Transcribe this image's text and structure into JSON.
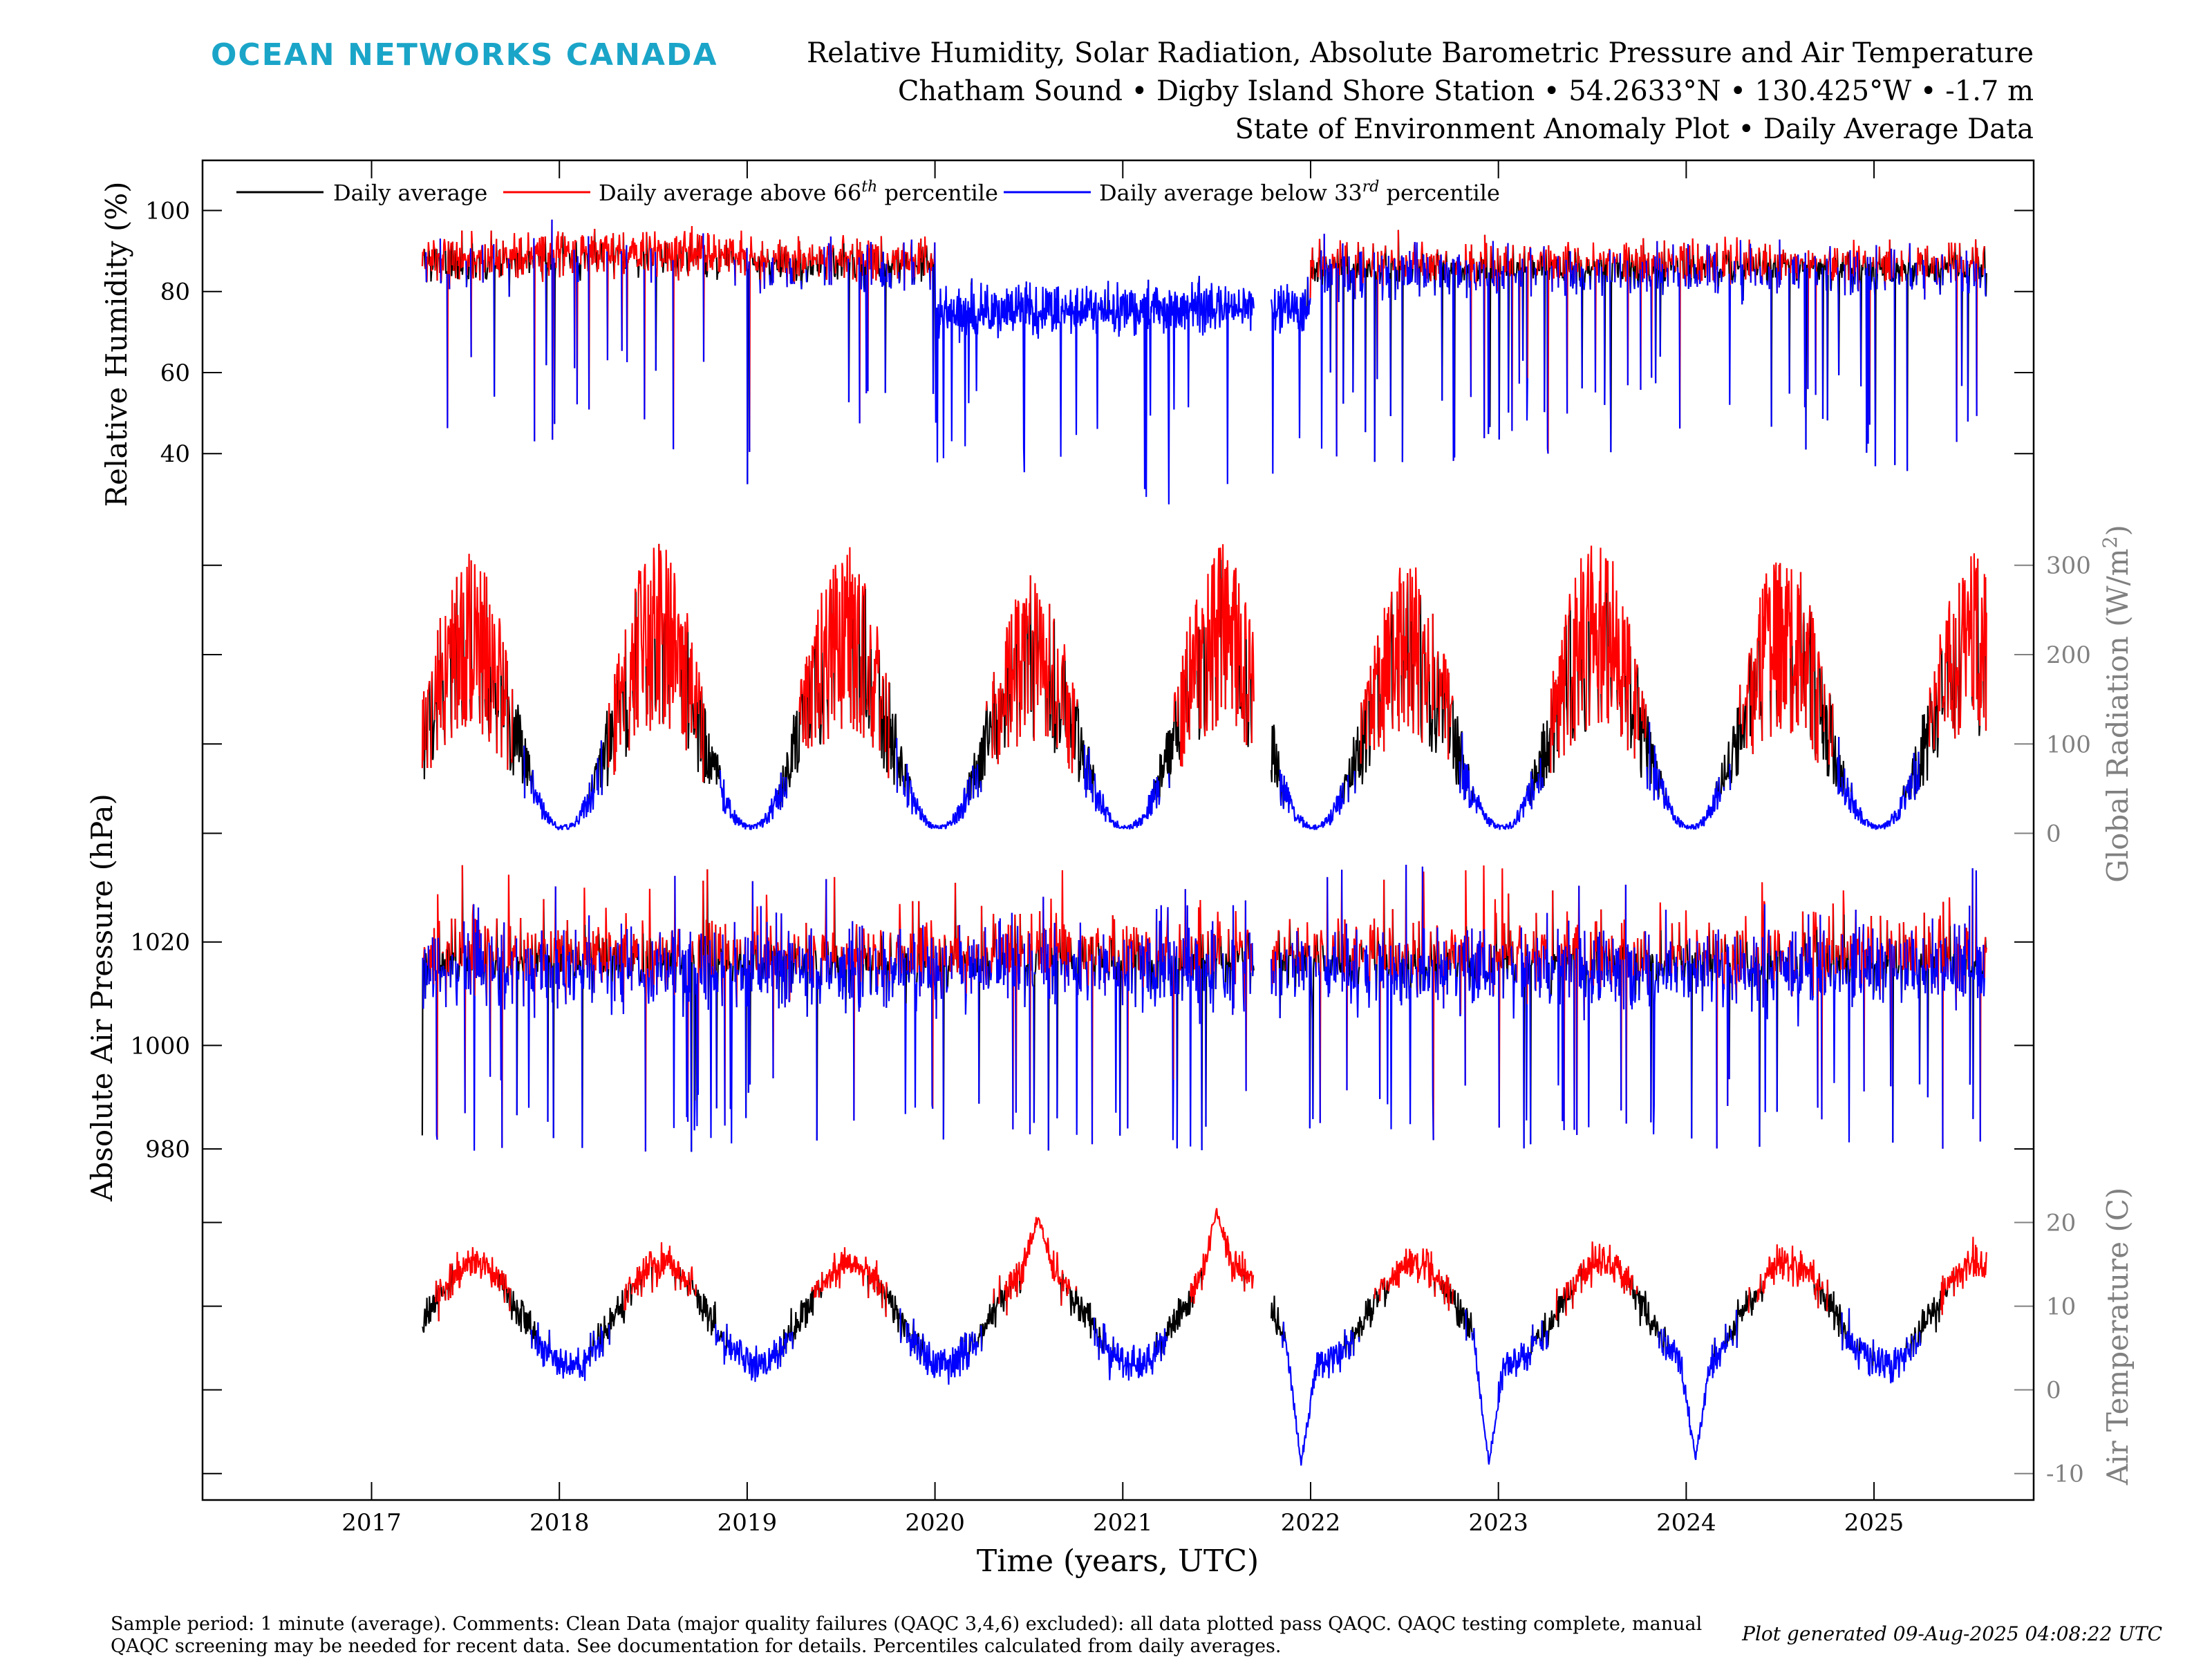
{
  "brand": "OCEAN NETWORKS CANADA",
  "title_lines": [
    "Relative Humidity, Solar Radiation, Absolute Barometric Pressure and Air Temperature",
    "Chatham Sound • Digby Island Shore Station • 54.2633°N • 130.425°W • -1.7 m",
    "State of Environment Anomaly Plot • Daily Average Data"
  ],
  "legend": [
    {
      "label": "Daily average",
      "color": "#000000"
    },
    {
      "label": "Daily average above 66",
      "sup": "th",
      "tail": " percentile",
      "color": "#ff0000"
    },
    {
      "label": "Daily average below 33",
      "sup": "rd",
      "tail": " percentile",
      "color": "#0000ff"
    }
  ],
  "footer": {
    "line1": "Sample period: 1 minute (average). Comments: Clean Data (major quality failures (QAQC 3,4,6) excluded): all data plotted pass QAQC. QAQC testing complete, manual",
    "line2": "QAQC screening may be needed for recent data. See documentation for details. Percentiles calculated from daily averages.",
    "generated": "Plot generated 09-Aug-2025 04:08:22 UTC"
  },
  "chart_data": {
    "type": "line",
    "xlabel": "Time (years, UTC)",
    "x_ticks": [
      "2017",
      "2018",
      "2019",
      "2020",
      "2021",
      "2022",
      "2023",
      "2024",
      "2025"
    ],
    "x_range": [
      2016.1,
      2025.85
    ],
    "data_start": 2017.27,
    "data_end": 2025.6,
    "gap": [
      2021.7,
      2021.79
    ],
    "panels": [
      {
        "id": "humidity",
        "ylabel": "Relative Humidity (%)",
        "axis_side": "left",
        "ylim": [
          24,
          111
        ],
        "yticks": [
          40,
          60,
          80,
          100
        ],
        "seasonal_profile": [
          {
            "year": 2017,
            "mean": 88,
            "min": 42,
            "max": 100
          },
          {
            "year": 2018,
            "mean": 89,
            "min": 40,
            "max": 100
          },
          {
            "year": 2019,
            "mean": 87,
            "min": 32,
            "max": 100
          },
          {
            "year": 2020,
            "mean": 75,
            "min": 28,
            "max": 96
          },
          {
            "year": 2021,
            "mean": 76,
            "min": 27,
            "max": 95
          },
          {
            "year": 2022,
            "mean": 86,
            "min": 34,
            "max": 97
          },
          {
            "year": 2023,
            "mean": 86,
            "min": 36,
            "max": 97
          },
          {
            "year": 2024,
            "mean": 86,
            "min": 35,
            "max": 97
          },
          {
            "year": 2025,
            "mean": 86,
            "min": 32,
            "max": 96
          }
        ]
      },
      {
        "id": "radiation",
        "ylabel": "Global Radiation (W/m",
        "ylabel_sup": "2",
        "ylabel_tail": ")",
        "axis_side": "right",
        "ylim": [
          -5,
          340
        ],
        "yticks": [
          0,
          100,
          200,
          300
        ],
        "annual_peaks": [
          {
            "year": 2017.5,
            "peak": 320
          },
          {
            "year": 2018.5,
            "peak": 330
          },
          {
            "year": 2019.45,
            "peak": 325
          },
          {
            "year": 2020.45,
            "peak": 295
          },
          {
            "year": 2021.5,
            "peak": 325
          },
          {
            "year": 2022.5,
            "peak": 305
          },
          {
            "year": 2023.45,
            "peak": 335
          },
          {
            "year": 2024.5,
            "peak": 320
          },
          {
            "year": 2025.5,
            "peak": 315
          }
        ]
      },
      {
        "id": "pressure",
        "ylabel": "Absolute Air Pressure (hPa)",
        "axis_side": "left",
        "ylim": [
          976,
          1038
        ],
        "yticks": [
          980,
          1000,
          1020
        ],
        "typical": {
          "mean": 1013,
          "min": 979,
          "max": 1035
        }
      },
      {
        "id": "temperature",
        "ylabel": "Air Temperature (C)",
        "axis_side": "right",
        "ylim": [
          -12.5,
          25
        ],
        "yticks": [
          -10,
          0,
          10,
          20
        ],
        "annual_cycle": {
          "summer_max": 15,
          "winter_min": 3
        },
        "extremes": [
          {
            "year": 2020.55,
            "value": 22
          },
          {
            "year": 2021.5,
            "value": 23
          },
          {
            "year": 2021.95,
            "value": -12
          },
          {
            "year": 2022.95,
            "value": -12
          },
          {
            "year": 2024.05,
            "value": -11
          }
        ]
      }
    ]
  }
}
